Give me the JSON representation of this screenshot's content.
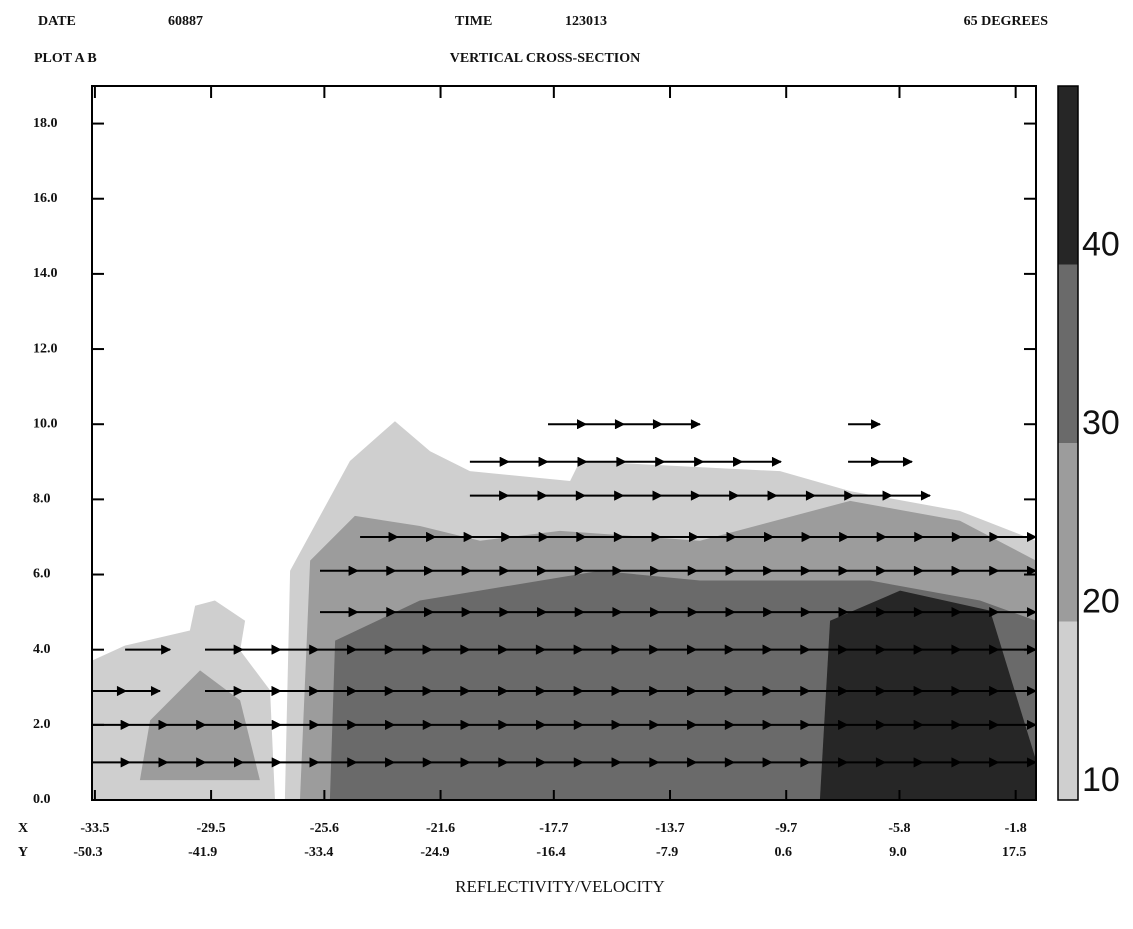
{
  "chart_data": {
    "type": "contour",
    "header": {
      "date_label": "DATE",
      "date": "60887",
      "time_label": "TIME",
      "time": "123013",
      "angle": "65 DEGREES",
      "plot": "PLOT A B",
      "title": "VERTICAL CROSS-SECTION"
    },
    "xlabel": "REFLECTIVITY/VELOCITY",
    "x_row_label": "X",
    "x2_row_label": "Y",
    "xlim": [
      -33.6,
      -1.1
    ],
    "xticks": [
      -33.5,
      -29.5,
      -25.6,
      -21.6,
      -17.7,
      -13.7,
      -9.7,
      -5.8,
      -1.8
    ],
    "x2lim": [
      -50.0,
      19.1
    ],
    "x2ticks": [
      -50.3,
      -41.9,
      -33.4,
      -24.9,
      -16.4,
      -7.9,
      0.6,
      {
        "value": 9,
        "label": "9.0"
      },
      17.5
    ],
    "ylim": [
      0,
      19
    ],
    "yticks": [
      {
        "value": 0,
        "label": "0.0"
      },
      {
        "value": 2,
        "label": "2.0"
      },
      {
        "value": 4,
        "label": "4.0"
      },
      {
        "value": 6,
        "label": "6.0"
      },
      {
        "value": 8,
        "label": "8.0"
      },
      {
        "value": 10,
        "label": "10.0"
      },
      {
        "value": 12,
        "label": "12.0"
      },
      {
        "value": 14,
        "label": "14.0"
      },
      {
        "value": 16,
        "label": "16.0"
      },
      {
        "value": 18,
        "label": "18.0"
      }
    ],
    "colorbar": {
      "lim": [
        9,
        49
      ],
      "ticks": [
        10,
        20,
        30,
        40
      ],
      "levels": [
        9,
        19,
        29,
        39,
        49
      ],
      "colors": [
        "#cfcfcf",
        "#9c9c9c",
        "#6a6a6a",
        "#262626"
      ]
    },
    "regions": [
      {
        "level": 15,
        "x": [
          -33.6,
          -33.6,
          -32.46,
          -30.23,
          -30.05,
          -29.37,
          -28.33,
          -28.5,
          -27.47,
          -27.3
        ],
        "y": [
          0,
          3.71,
          4.11,
          4.51,
          5.17,
          5.31,
          4.77,
          3.98,
          2.92,
          0
        ]
      },
      {
        "level": 15,
        "x": [
          -26.96,
          -26.78,
          -24.72,
          -23.17,
          -21.96,
          -20.59,
          -17.14,
          -16.8,
          -9.91,
          -7.5,
          -3.72,
          -1.1,
          -1.1
        ],
        "y": [
          0,
          6.1,
          9.02,
          10.08,
          9.28,
          8.75,
          8.49,
          9.02,
          8.75,
          8.22,
          7.69,
          6.9,
          0
        ]
      },
      {
        "level": 25,
        "x": [
          -31.95,
          -31.6,
          -29.88,
          -28.5,
          -27.82
        ],
        "y": [
          0.53,
          2.12,
          3.45,
          2.65,
          0.53
        ]
      },
      {
        "level": 25,
        "x": [
          -26.44,
          -26.09,
          -24.55,
          -22.31,
          -20.24,
          -17.49,
          -12.67,
          -7.5,
          -3.72,
          -1.1,
          -1.1
        ],
        "y": [
          0,
          6.37,
          7.56,
          7.29,
          6.9,
          7.16,
          6.9,
          7.96,
          7.43,
          6.37,
          0
        ]
      },
      {
        "level": 35,
        "x": [
          -25.41,
          -25.23,
          -22.31,
          -16.11,
          -12.67,
          -6.81,
          -3.03,
          -1.1,
          -1.1
        ],
        "y": [
          0,
          4.24,
          5.31,
          6.1,
          5.84,
          5.84,
          5.31,
          4.77,
          0
        ]
      },
      {
        "level": 45,
        "x": [
          -8.54,
          -8.19,
          -5.78,
          -2.68,
          -1.1,
          -1.1
        ],
        "y": [
          0,
          4.77,
          5.57,
          5.04,
          1.06,
          0
        ]
      }
    ],
    "vectors": [
      {
        "z": 10.0,
        "x": [
          -17.9,
          -12.67
        ]
      },
      {
        "z": 10.0,
        "x": [
          -7.57,
          -6.47
        ]
      },
      {
        "z": 9.0,
        "x": [
          -20.59,
          -9.88
        ]
      },
      {
        "z": 9.0,
        "x": [
          -7.57,
          -5.37
        ]
      },
      {
        "z": 8.1,
        "x": [
          -20.59,
          -4.75
        ]
      },
      {
        "z": 7.0,
        "x": [
          -24.37,
          -1.1
        ]
      },
      {
        "z": 6.1,
        "x": [
          -25.75,
          -1.1
        ]
      },
      {
        "z": 5.0,
        "x": [
          -25.75,
          -1.1
        ]
      },
      {
        "z": 4.0,
        "x": [
          -32.46,
          -30.91
        ]
      },
      {
        "z": 4.0,
        "x": [
          -29.71,
          -1.1
        ]
      },
      {
        "z": 2.9,
        "x": [
          -33.6,
          -31.26
        ]
      },
      {
        "z": 2.9,
        "x": [
          -29.71,
          -1.1
        ]
      },
      {
        "z": 2.0,
        "x": [
          -33.6,
          -1.1
        ]
      },
      {
        "z": 1.0,
        "x": [
          -33.6,
          -1.1
        ]
      }
    ]
  }
}
